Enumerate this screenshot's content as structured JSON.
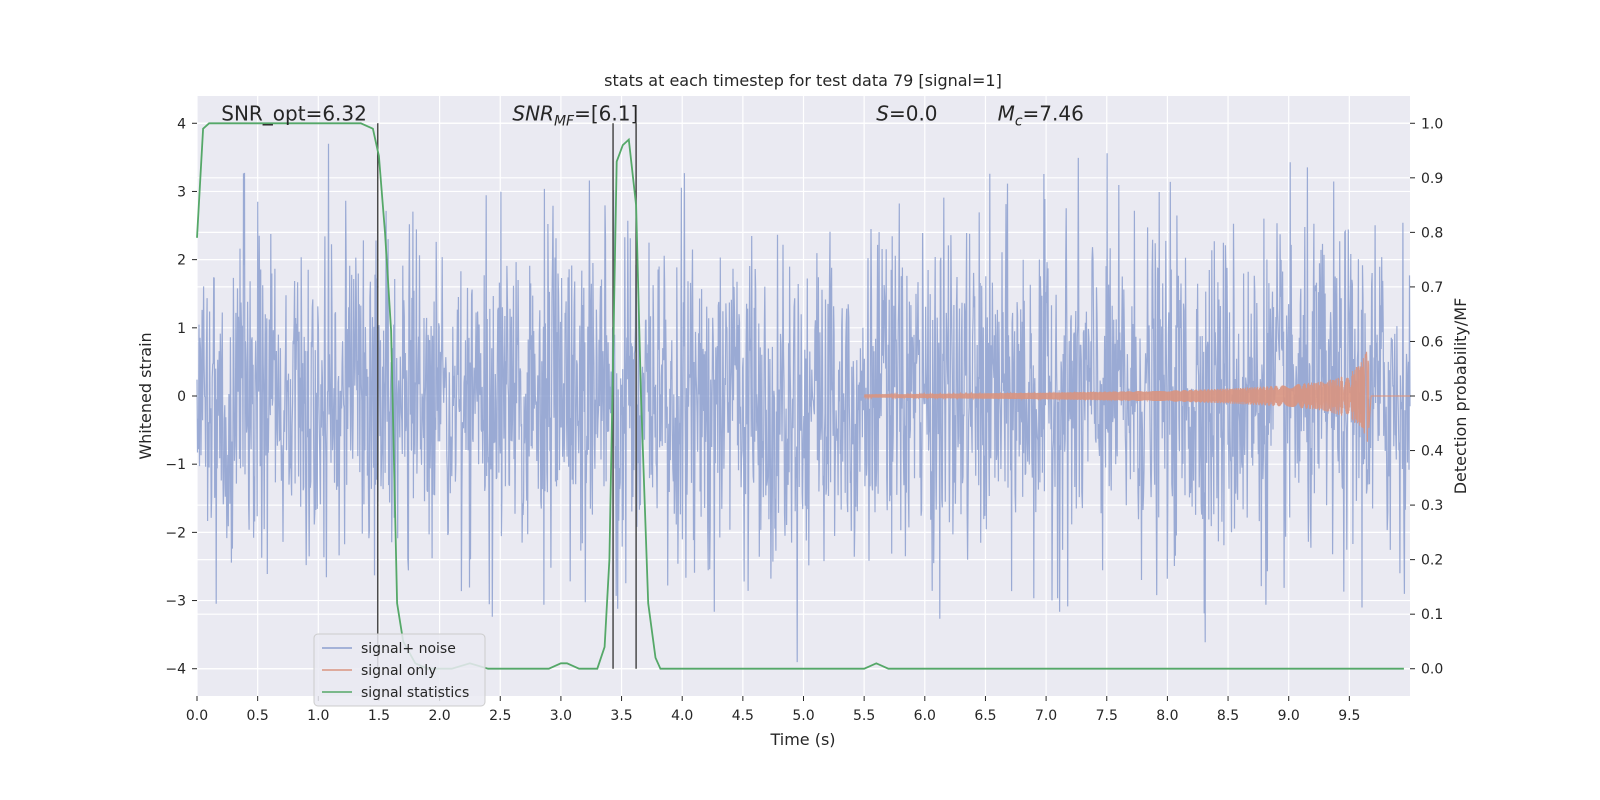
{
  "chart_data": {
    "type": "line",
    "title": "stats at each timestep for test data 79 [signal=1]",
    "xlabel": "Time (s)",
    "ylabel_left": "Whitened strain",
    "ylabel_right": "Detection probability/MF",
    "xlim": [
      0.0,
      10.0
    ],
    "ylim_left": [
      -4.4,
      4.4
    ],
    "ylim_right": [
      -0.05,
      1.05
    ],
    "x_ticks": [
      0.0,
      0.5,
      1.0,
      1.5,
      2.0,
      2.5,
      3.0,
      3.5,
      4.0,
      4.5,
      5.0,
      5.5,
      6.0,
      6.5,
      7.0,
      7.5,
      8.0,
      8.5,
      9.0,
      9.5
    ],
    "x_tick_labels": [
      "0.0",
      "0.5",
      "1.0",
      "1.5",
      "2.0",
      "2.5",
      "3.0",
      "3.5",
      "4.0",
      "4.5",
      "5.0",
      "5.5",
      "6.0",
      "6.5",
      "7.0",
      "7.5",
      "8.0",
      "8.5",
      "9.0",
      "9.5"
    ],
    "y_left_ticks": [
      -4,
      -3,
      -2,
      -1,
      0,
      1,
      2,
      3,
      4
    ],
    "y_left_tick_labels": [
      "−4",
      "−3",
      "−2",
      "−1",
      "0",
      "1",
      "2",
      "3",
      "4"
    ],
    "y_right_ticks": [
      0.0,
      0.1,
      0.2,
      0.3,
      0.4,
      0.5,
      0.6,
      0.7,
      0.8,
      0.9,
      1.0
    ],
    "y_right_tick_labels": [
      "0.0",
      "0.1",
      "0.2",
      "0.3",
      "0.4",
      "0.5",
      "0.6",
      "0.7",
      "0.8",
      "0.9",
      "1.0"
    ],
    "grid": true,
    "legend_position": "lower-left",
    "annotations": [
      {
        "id": "snr-opt",
        "text": "SNR_opt=6.32",
        "x": 0.2,
        "y": 4.1
      },
      {
        "id": "snr-mf",
        "text": "SNR",
        "sub": "MF",
        "tail": "=[6.1]",
        "x": 2.6,
        "y": 4.1
      },
      {
        "id": "s-stat",
        "text": "S",
        "tail": "=0.0",
        "x": 5.6,
        "y": 4.1
      },
      {
        "id": "chirp-mass",
        "text": "M",
        "sub": "c",
        "tail": "=7.46",
        "x": 6.6,
        "y": 4.1
      }
    ],
    "vertical_lines": [
      1.49,
      3.43,
      3.62
    ],
    "series": [
      {
        "name": "signal+ noise",
        "axis": "left",
        "color": "#8c9fcf",
        "style": "gaussian noise band",
        "t_range": [
          0.0,
          10.0
        ],
        "envelope_sigma": 1.2,
        "approx_range": [
          -4.0,
          3.7
        ]
      },
      {
        "name": "signal only",
        "axis": "left",
        "color": "#d99480",
        "style": "chirp",
        "envelope": {
          "t": [
            5.5,
            7.0,
            8.0,
            8.5,
            9.0,
            9.3,
            9.5,
            9.6,
            9.65
          ],
          "a": [
            0.02,
            0.05,
            0.08,
            0.11,
            0.16,
            0.22,
            0.32,
            0.5,
            0.68
          ]
        },
        "end_time": 9.66
      },
      {
        "name": "signal statistics",
        "axis": "right",
        "color": "#55a868",
        "x": [
          0.0,
          0.05,
          0.1,
          0.5,
          1.0,
          1.35,
          1.45,
          1.5,
          1.55,
          1.6,
          1.65,
          1.7,
          1.8,
          1.9,
          2.0,
          2.1,
          2.25,
          2.4,
          2.6,
          2.9,
          3.0,
          3.05,
          3.15,
          3.25,
          3.3,
          3.36,
          3.4,
          3.46,
          3.51,
          3.56,
          3.62,
          3.66,
          3.72,
          3.78,
          3.82,
          3.87,
          3.92,
          4.0,
          4.5,
          5.0,
          5.5,
          5.6,
          5.7,
          6.0,
          7.0,
          7.65,
          7.75,
          8.0,
          9.0,
          9.95
        ],
        "y": [
          0.79,
          0.99,
          1.0,
          1.0,
          1.0,
          1.0,
          0.99,
          0.94,
          0.8,
          0.62,
          0.12,
          0.05,
          0.01,
          0.0,
          0.0,
          0.0,
          0.01,
          0.0,
          0.0,
          0.0,
          0.01,
          0.01,
          0.0,
          0.0,
          0.0,
          0.04,
          0.2,
          0.93,
          0.96,
          0.97,
          0.85,
          0.5,
          0.12,
          0.02,
          0.0,
          0.0,
          0.0,
          0.0,
          0.0,
          0.0,
          0.0,
          0.01,
          0.0,
          0.0,
          0.0,
          0.0,
          0.0,
          0.0,
          0.0,
          0.0
        ]
      }
    ]
  }
}
